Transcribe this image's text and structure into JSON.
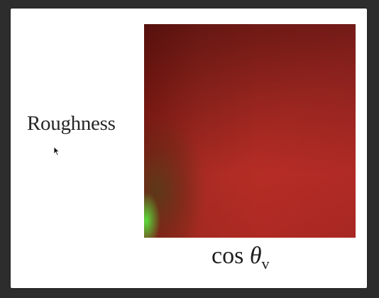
{
  "diagram": {
    "y_axis_label": "Roughness",
    "x_axis_label": {
      "func": "cos",
      "symbol": "θ",
      "subscript": "v"
    },
    "colors": {
      "frame_background": "#ffffff",
      "outer_background": "#2d2d2d",
      "lut_dark_red": "#3a0b08",
      "lut_red": "#c0302a",
      "lut_green": "#5ae63c"
    }
  },
  "cursor": {
    "icon": "mouse-pointer-icon"
  }
}
